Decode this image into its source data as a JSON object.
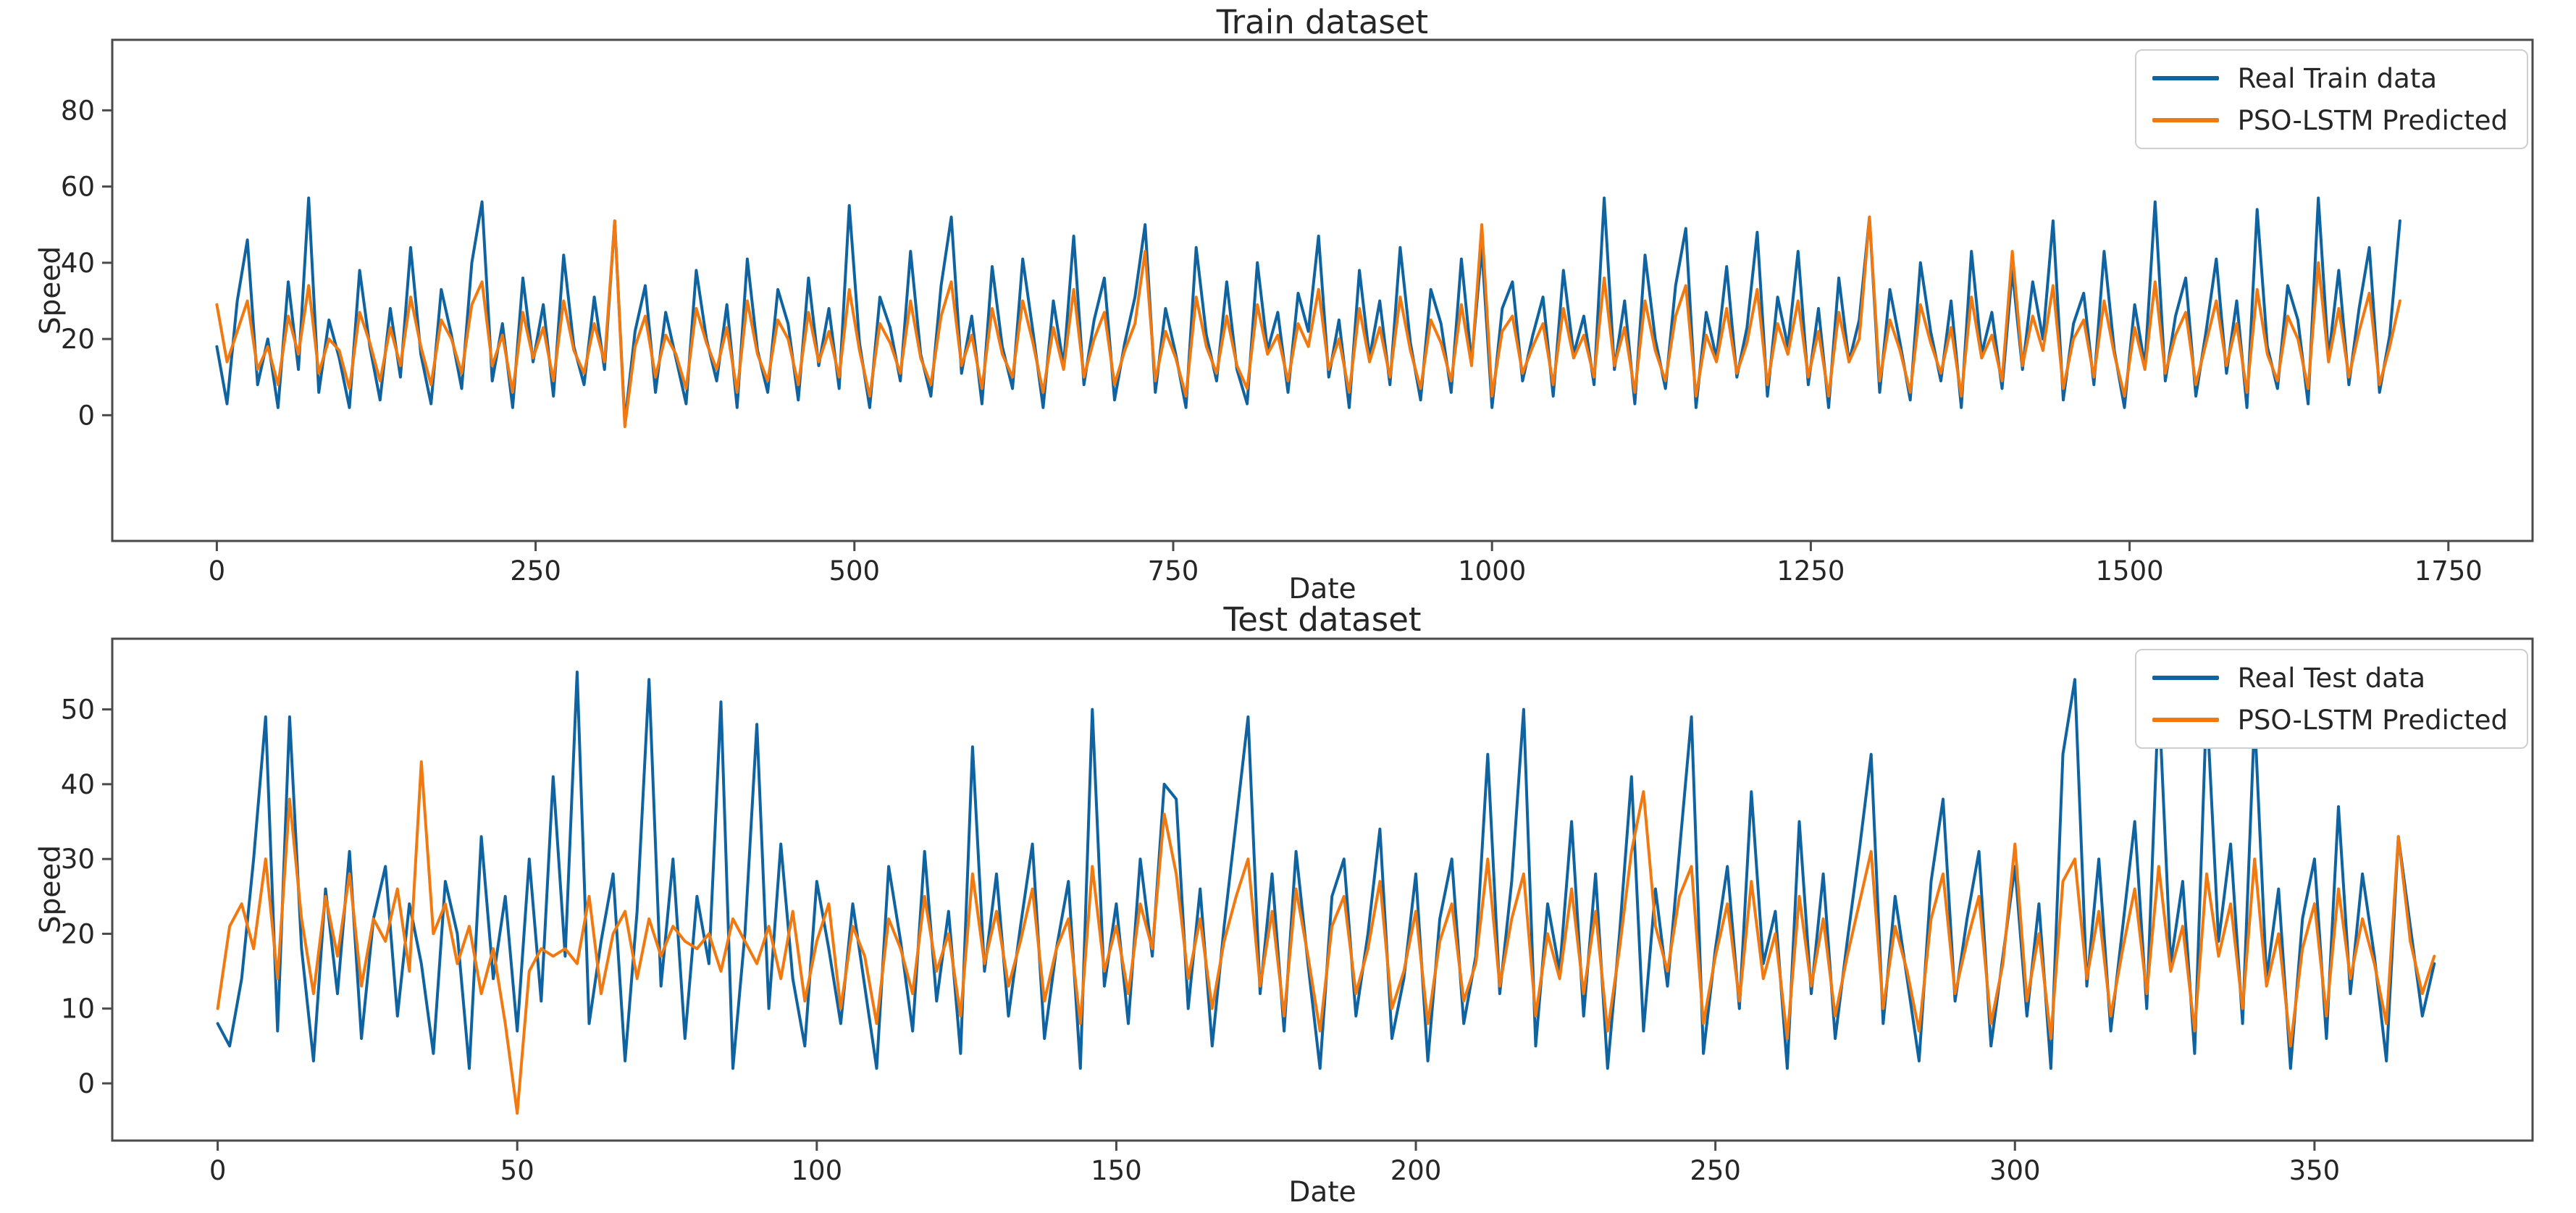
{
  "figure": {
    "background": "#ffffff"
  },
  "colors": {
    "real_line": "#0e63a0",
    "predicted_line": "#f1790f",
    "spine": "#4a4a4a",
    "text": "#262626",
    "legend_border": "#cfcfcf"
  },
  "chart_data": [
    {
      "type": "line",
      "title": "Train dataset",
      "xlabel": "Date",
      "ylabel": "Speed",
      "xlim": [
        -82,
        1816
      ],
      "ylim": [
        -33,
        98.5
      ],
      "xticks": [
        0,
        250,
        500,
        750,
        1000,
        1250,
        1500,
        1750
      ],
      "yticks": [
        0,
        20,
        40,
        60,
        80
      ],
      "grid": false,
      "legend": {
        "position": "upper right",
        "entries": [
          {
            "label": "Real Train data",
            "color": "#0e63a0"
          },
          {
            "label": "PSO-LSTM Predicted",
            "color": "#f1790f"
          }
        ]
      },
      "series": [
        {
          "name": "Real Train data",
          "color": "#0e63a0",
          "x_start": 0,
          "x_step": 8,
          "y": [
            18,
            3,
            30,
            46,
            8,
            20,
            2,
            35,
            12,
            57,
            6,
            25,
            15,
            2,
            38,
            18,
            4,
            28,
            10,
            44,
            16,
            3,
            33,
            21,
            7,
            40,
            56,
            9,
            24,
            2,
            36,
            14,
            29,
            5,
            42,
            18,
            8,
            31,
            12,
            51,
            -2,
            22,
            34,
            6,
            27,
            15,
            3,
            38,
            20,
            9,
            29,
            2,
            41,
            17,
            6,
            33,
            24,
            4,
            36,
            13,
            28,
            7,
            55,
            19,
            2,
            31,
            23,
            9,
            43,
            16,
            5,
            34,
            52,
            11,
            26,
            3,
            39,
            18,
            7,
            41,
            22,
            2,
            30,
            13,
            47,
            8,
            25,
            36,
            4,
            19,
            31,
            50,
            6,
            28,
            16,
            2,
            44,
            21,
            9,
            35,
            12,
            3,
            40,
            17,
            27,
            6,
            32,
            22,
            47,
            10,
            25,
            2,
            38,
            15,
            30,
            8,
            44,
            19,
            4,
            33,
            24,
            6,
            41,
            14,
            44,
            2,
            28,
            35,
            9,
            21,
            31,
            5,
            38,
            16,
            26,
            8,
            57,
            12,
            30,
            3,
            42,
            20,
            7,
            34,
            49,
            2,
            27,
            15,
            39,
            10,
            23,
            48,
            5,
            31,
            18,
            43,
            8,
            28,
            2,
            36,
            14,
            25,
            52,
            6,
            33,
            19,
            4,
            40,
            22,
            9,
            30,
            2,
            43,
            16,
            27,
            7,
            38,
            12,
            35,
            20,
            51,
            4,
            24,
            32,
            8,
            43,
            17,
            2,
            29,
            13,
            56,
            9,
            26,
            36,
            5,
            22,
            41,
            11,
            30,
            2,
            54,
            18,
            7,
            34,
            25,
            3,
            57,
            15,
            38,
            8,
            28,
            44,
            6,
            21,
            51
          ]
        },
        {
          "name": "PSO-LSTM Predicted",
          "color": "#f1790f",
          "x_start": 0,
          "x_step": 8,
          "y": [
            29,
            14,
            22,
            30,
            12,
            18,
            8,
            26,
            16,
            34,
            11,
            20,
            17,
            7,
            27,
            19,
            9,
            23,
            13,
            31,
            18,
            8,
            25,
            20,
            11,
            29,
            35,
            13,
            21,
            6,
            27,
            15,
            23,
            9,
            30,
            17,
            11,
            24,
            14,
            51,
            -3,
            18,
            26,
            10,
            21,
            16,
            7,
            28,
            19,
            12,
            23,
            6,
            30,
            16,
            9,
            25,
            20,
            8,
            27,
            14,
            22,
            10,
            33,
            17,
            5,
            24,
            19,
            11,
            30,
            15,
            8,
            26,
            35,
            13,
            21,
            7,
            28,
            16,
            10,
            30,
            19,
            6,
            23,
            12,
            33,
            10,
            20,
            27,
            8,
            17,
            24,
            43,
            9,
            22,
            15,
            5,
            31,
            18,
            11,
            26,
            13,
            7,
            29,
            16,
            21,
            9,
            24,
            18,
            33,
            12,
            20,
            6,
            28,
            14,
            23,
            10,
            31,
            17,
            7,
            25,
            19,
            9,
            29,
            13,
            50,
            5,
            22,
            26,
            11,
            18,
            24,
            8,
            28,
            15,
            21,
            10,
            36,
            13,
            23,
            6,
            30,
            17,
            9,
            26,
            34,
            5,
            21,
            14,
            28,
            11,
            19,
            33,
            8,
            24,
            16,
            30,
            10,
            22,
            5,
            27,
            14,
            20,
            52,
            9,
            25,
            17,
            6,
            29,
            19,
            11,
            23,
            5,
            31,
            15,
            21,
            9,
            43,
            13,
            26,
            17,
            34,
            7,
            20,
            25,
            10,
            30,
            16,
            5,
            23,
            12,
            35,
            11,
            21,
            27,
            8,
            19,
            30,
            13,
            24,
            6,
            33,
            16,
            9,
            26,
            20,
            7,
            40,
            14,
            28,
            10,
            22,
            32,
            8,
            18,
            30
          ]
        }
      ]
    },
    {
      "type": "line",
      "title": "Test dataset",
      "xlabel": "Date",
      "ylabel": "Speed",
      "xlim": [
        -17.6,
        386.4
      ],
      "ylim": [
        -7.65,
        59.45
      ],
      "xticks": [
        0,
        50,
        100,
        150,
        200,
        250,
        300,
        350
      ],
      "yticks": [
        0,
        10,
        20,
        30,
        40,
        50
      ],
      "grid": false,
      "legend": {
        "position": "upper right",
        "entries": [
          {
            "label": "Real Test data",
            "color": "#0e63a0"
          },
          {
            "label": "PSO-LSTM Predicted",
            "color": "#f1790f"
          }
        ]
      },
      "series": [
        {
          "name": "Real Test data",
          "color": "#0e63a0",
          "x_start": 0,
          "x_step": 2,
          "y": [
            8,
            5,
            14,
            30,
            49,
            7,
            49,
            18,
            3,
            26,
            12,
            31,
            6,
            22,
            29,
            9,
            24,
            16,
            4,
            27,
            20,
            2,
            33,
            14,
            25,
            7,
            30,
            11,
            41,
            17,
            55,
            8,
            19,
            28,
            3,
            23,
            54,
            13,
            30,
            6,
            25,
            16,
            51,
            2,
            20,
            48,
            10,
            32,
            14,
            5,
            27,
            18,
            8,
            24,
            13,
            2,
            29,
            19,
            7,
            31,
            11,
            23,
            4,
            45,
            15,
            28,
            9,
            21,
            32,
            6,
            18,
            27,
            2,
            50,
            13,
            24,
            8,
            30,
            17,
            40,
            38,
            10,
            26,
            5,
            21,
            35,
            49,
            12,
            28,
            7,
            31,
            16,
            2,
            25,
            30,
            9,
            20,
            34,
            6,
            14,
            28,
            3,
            22,
            30,
            8,
            17,
            44,
            12,
            27,
            50,
            5,
            24,
            15,
            35,
            9,
            28,
            2,
            20,
            41,
            7,
            26,
            13,
            31,
            49,
            4,
            18,
            29,
            10,
            39,
            16,
            23,
            2,
            35,
            12,
            28,
            6,
            19,
            31,
            44,
            8,
            25,
            14,
            3,
            27,
            38,
            11,
            22,
            31,
            5,
            17,
            29,
            9,
            24,
            2,
            44,
            54,
            13,
            30,
            7,
            21,
            35,
            10,
            52,
            16,
            27,
            4,
            51,
            19,
            32,
            8,
            49,
            14,
            26,
            2,
            22,
            30,
            6,
            37,
            12,
            28,
            17,
            3,
            33,
            21,
            9,
            16
          ]
        },
        {
          "name": "PSO-LSTM Predicted",
          "color": "#f1790f",
          "x_start": 0,
          "x_step": 2,
          "y": [
            10,
            21,
            24,
            18,
            30,
            14,
            38,
            22,
            12,
            25,
            17,
            28,
            13,
            22,
            19,
            26,
            15,
            43,
            20,
            24,
            16,
            21,
            12,
            18,
            8,
            -4,
            15,
            18,
            17,
            18,
            16,
            25,
            12,
            20,
            23,
            14,
            22,
            17,
            21,
            19,
            18,
            20,
            15,
            22,
            19,
            16,
            21,
            14,
            23,
            11,
            19,
            24,
            10,
            21,
            17,
            8,
            22,
            18,
            12,
            25,
            15,
            20,
            9,
            28,
            16,
            23,
            13,
            19,
            26,
            11,
            18,
            22,
            8,
            29,
            15,
            21,
            12,
            24,
            18,
            36,
            28,
            14,
            22,
            10,
            19,
            25,
            30,
            13,
            23,
            9,
            26,
            17,
            7,
            21,
            25,
            12,
            18,
            27,
            10,
            15,
            23,
            8,
            19,
            24,
            11,
            16,
            30,
            13,
            22,
            28,
            9,
            20,
            14,
            26,
            12,
            23,
            7,
            18,
            31,
            39,
            21,
            15,
            25,
            29,
            8,
            17,
            24,
            11,
            27,
            14,
            20,
            6,
            25,
            13,
            22,
            9,
            17,
            24,
            31,
            10,
            21,
            15,
            7,
            22,
            28,
            12,
            19,
            25,
            8,
            16,
            32,
            11,
            20,
            6,
            27,
            30,
            14,
            23,
            9,
            18,
            26,
            12,
            29,
            15,
            21,
            7,
            28,
            17,
            24,
            10,
            30,
            13,
            20,
            5,
            18,
            24,
            9,
            26,
            14,
            22,
            16,
            8,
            33,
            19,
            12,
            17
          ]
        }
      ]
    }
  ]
}
